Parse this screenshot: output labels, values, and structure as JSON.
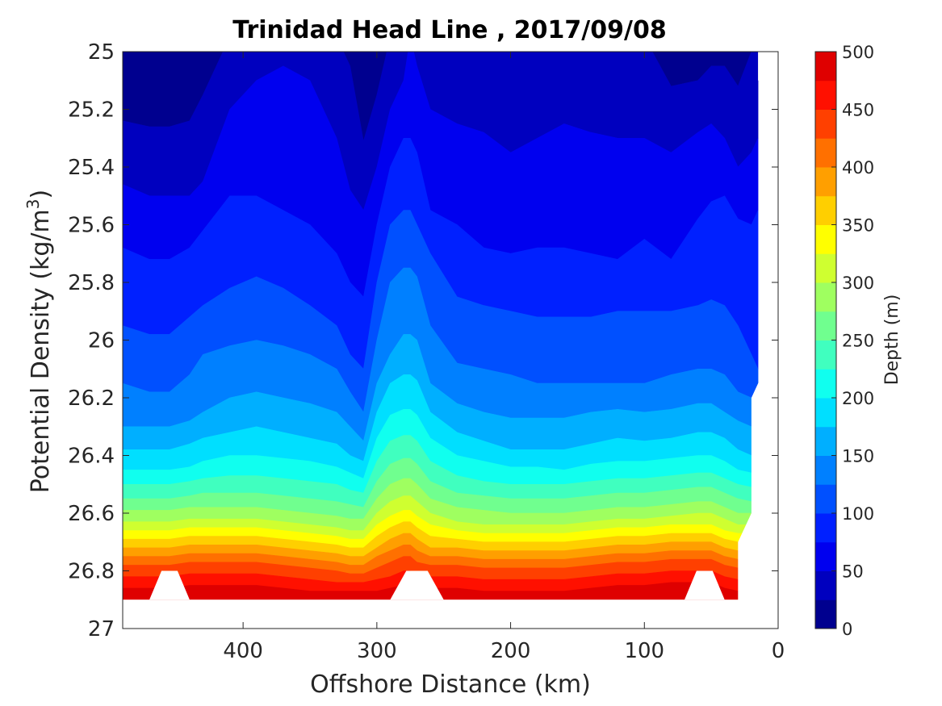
{
  "chart_data": {
    "type": "filled-contour",
    "title": "Trinidad Head Line , 2017/09/08",
    "xlabel": "Offshore Distance (km)",
    "ylabel_main": "Potential Density (kg/m",
    "ylabel_sup": "3",
    "ylabel_tail": ")",
    "xlim": [
      490,
      0
    ],
    "x_reversed": true,
    "ylim": [
      25,
      27
    ],
    "y_reversed": true,
    "x_ticks": [
      400,
      300,
      200,
      100,
      0
    ],
    "y_ticks": [
      25,
      25.2,
      25.4,
      25.6,
      25.8,
      26,
      26.2,
      26.4,
      26.6,
      26.8,
      27
    ],
    "y_tick_labels": [
      "25",
      "25.2",
      "25.4",
      "25.6",
      "25.8",
      "26",
      "26.2",
      "26.4",
      "26.6",
      "26.8",
      "27"
    ],
    "colorbar": {
      "label": "Depth (m)",
      "range": [
        0,
        500
      ],
      "ticks": [
        0,
        50,
        100,
        150,
        200,
        250,
        300,
        350,
        400,
        450,
        500
      ],
      "colormap": "jet",
      "levels": [
        0,
        25,
        50,
        75,
        100,
        125,
        150,
        175,
        200,
        225,
        250,
        275,
        300,
        325,
        350,
        375,
        400,
        425,
        450,
        475,
        500
      ],
      "colors": [
        "#00008f",
        "#0000bf",
        "#0000ef",
        "#0020ff",
        "#0050ff",
        "#0080ff",
        "#00afff",
        "#00dfff",
        "#10ffef",
        "#40ffbf",
        "#70ff8f",
        "#9fff60",
        "#cfff30",
        "#ffff00",
        "#ffcf00",
        "#ff9f00",
        "#ff7000",
        "#ff4000",
        "#ff1000",
        "#df0000"
      ]
    },
    "x_samples": [
      490,
      470,
      455,
      440,
      430,
      410,
      390,
      370,
      350,
      330,
      320,
      310,
      300,
      290,
      280,
      275,
      270,
      260,
      240,
      220,
      200,
      180,
      160,
      140,
      120,
      100,
      80,
      60,
      50,
      40,
      30,
      20,
      15
    ],
    "isopycnal_depth_levels": [
      {
        "depth": 25,
        "density": [
          25.24,
          25.26,
          25.26,
          25.24,
          25.15,
          24.95,
          24.95,
          24.95,
          24.95,
          24.95,
          25.05,
          25.31,
          25.15,
          24.95,
          24.95,
          24.95,
          24.95,
          24.95,
          24.95,
          24.95,
          24.95,
          24.95,
          24.95,
          24.95,
          24.95,
          24.95,
          25.12,
          25.1,
          25.05,
          25.05,
          25.12,
          25.0,
          25.0
        ]
      },
      {
        "depth": 50,
        "density": [
          25.46,
          25.5,
          25.5,
          25.5,
          25.45,
          25.2,
          25.1,
          25.05,
          25.1,
          25.3,
          25.48,
          25.55,
          25.4,
          25.2,
          25.1,
          24.95,
          25.05,
          25.2,
          25.25,
          25.28,
          25.35,
          25.3,
          25.25,
          25.28,
          25.3,
          25.3,
          25.35,
          25.28,
          25.25,
          25.3,
          25.4,
          25.35,
          25.3
        ]
      },
      {
        "depth": 75,
        "density": [
          25.68,
          25.72,
          25.72,
          25.68,
          25.62,
          25.5,
          25.5,
          25.55,
          25.6,
          25.7,
          25.8,
          25.85,
          25.6,
          25.4,
          25.3,
          25.3,
          25.35,
          25.55,
          25.6,
          25.68,
          25.7,
          25.68,
          25.68,
          25.7,
          25.72,
          25.65,
          25.72,
          25.58,
          25.52,
          25.5,
          25.58,
          25.6,
          25.55
        ]
      },
      {
        "depth": 100,
        "density": [
          25.95,
          25.98,
          25.98,
          25.92,
          25.88,
          25.82,
          25.78,
          25.82,
          25.88,
          25.95,
          26.05,
          26.1,
          25.8,
          25.6,
          25.55,
          25.55,
          25.6,
          25.7,
          25.85,
          25.88,
          25.9,
          25.92,
          25.92,
          25.92,
          25.9,
          25.9,
          25.9,
          25.88,
          25.86,
          25.88,
          25.95,
          26.05,
          26.1
        ]
      },
      {
        "depth": 125,
        "density": [
          26.15,
          26.18,
          26.18,
          26.12,
          26.05,
          26.02,
          26.0,
          26.02,
          26.05,
          26.1,
          26.18,
          26.25,
          26.0,
          25.8,
          25.75,
          25.75,
          25.78,
          25.95,
          26.08,
          26.1,
          26.12,
          26.15,
          26.15,
          26.15,
          26.15,
          26.15,
          26.12,
          26.1,
          26.1,
          26.12,
          26.18,
          26.2,
          26.2
        ]
      },
      {
        "depth": 150,
        "density": [
          26.3,
          26.3,
          26.3,
          26.28,
          26.25,
          26.2,
          26.18,
          26.2,
          26.22,
          26.25,
          26.3,
          26.35,
          26.15,
          26.05,
          25.98,
          25.98,
          26.0,
          26.15,
          26.22,
          26.25,
          26.27,
          26.27,
          26.27,
          26.25,
          26.24,
          26.25,
          26.24,
          26.22,
          26.22,
          26.25,
          26.28,
          26.3,
          26.3
        ]
      },
      {
        "depth": 175,
        "density": [
          26.38,
          26.38,
          26.38,
          26.36,
          26.34,
          26.32,
          26.3,
          26.32,
          26.34,
          26.36,
          26.4,
          26.42,
          26.25,
          26.15,
          26.12,
          26.12,
          26.14,
          26.25,
          26.32,
          26.35,
          26.38,
          26.38,
          26.38,
          26.36,
          26.34,
          26.35,
          26.34,
          26.32,
          26.32,
          26.34,
          26.38,
          26.4,
          26.4
        ]
      },
      {
        "depth": 200,
        "density": [
          26.45,
          26.45,
          26.45,
          26.44,
          26.42,
          26.4,
          26.4,
          26.41,
          26.42,
          26.44,
          26.46,
          26.48,
          26.34,
          26.26,
          26.24,
          26.24,
          26.26,
          26.34,
          26.4,
          26.42,
          26.44,
          26.44,
          26.45,
          26.43,
          26.42,
          26.42,
          26.41,
          26.4,
          26.4,
          26.42,
          26.45,
          26.46,
          26.46
        ]
      },
      {
        "depth": 225,
        "density": [
          26.5,
          26.5,
          26.5,
          26.49,
          26.48,
          26.47,
          26.47,
          26.48,
          26.49,
          26.5,
          26.52,
          26.53,
          26.42,
          26.35,
          26.33,
          26.33,
          26.35,
          26.42,
          26.47,
          26.49,
          26.5,
          26.5,
          26.5,
          26.49,
          26.48,
          26.48,
          26.47,
          26.46,
          26.46,
          26.48,
          26.5,
          26.51,
          26.51
        ]
      },
      {
        "depth": 250,
        "density": [
          26.55,
          26.55,
          26.55,
          26.54,
          26.53,
          26.53,
          26.53,
          26.54,
          26.55,
          26.56,
          26.57,
          26.58,
          26.49,
          26.43,
          26.41,
          26.41,
          26.43,
          26.49,
          26.53,
          26.54,
          26.55,
          26.55,
          26.55,
          26.54,
          26.53,
          26.53,
          26.52,
          26.51,
          26.51,
          26.53,
          26.55,
          26.56,
          26.56
        ]
      },
      {
        "depth": 275,
        "density": [
          26.59,
          26.59,
          26.59,
          26.58,
          26.58,
          26.58,
          26.58,
          26.59,
          26.6,
          26.61,
          26.62,
          26.62,
          26.55,
          26.5,
          26.48,
          26.48,
          26.5,
          26.55,
          26.58,
          26.59,
          26.6,
          26.6,
          26.6,
          26.59,
          26.58,
          26.58,
          26.57,
          26.56,
          26.56,
          26.58,
          26.6,
          26.6,
          26.6
        ]
      },
      {
        "depth": 300,
        "density": [
          26.63,
          26.63,
          26.63,
          26.62,
          26.62,
          26.62,
          26.62,
          26.63,
          26.64,
          26.65,
          26.66,
          26.66,
          26.6,
          26.56,
          26.54,
          26.54,
          26.56,
          26.6,
          26.63,
          26.64,
          26.64,
          26.64,
          26.64,
          26.63,
          26.62,
          26.62,
          26.61,
          26.6,
          26.6,
          26.62,
          26.64,
          26.64,
          26.64
        ]
      },
      {
        "depth": 325,
        "density": [
          26.66,
          26.66,
          26.66,
          26.65,
          26.65,
          26.65,
          26.65,
          26.66,
          26.67,
          26.68,
          26.69,
          26.69,
          26.64,
          26.61,
          26.59,
          26.59,
          26.61,
          26.64,
          26.66,
          26.67,
          26.67,
          26.67,
          26.67,
          26.66,
          26.65,
          26.65,
          26.64,
          26.64,
          26.64,
          26.66,
          26.67,
          26.67,
          26.67
        ]
      },
      {
        "depth": 350,
        "density": [
          26.69,
          26.69,
          26.69,
          26.68,
          26.68,
          26.68,
          26.68,
          26.69,
          26.7,
          26.71,
          26.72,
          26.72,
          26.68,
          26.65,
          26.63,
          26.63,
          26.65,
          26.68,
          26.69,
          26.7,
          26.7,
          26.7,
          26.7,
          26.69,
          26.68,
          26.68,
          26.67,
          26.67,
          26.67,
          26.69,
          26.7,
          26.7,
          26.7
        ]
      },
      {
        "depth": 375,
        "density": [
          26.72,
          26.72,
          26.72,
          26.71,
          26.71,
          26.71,
          26.71,
          26.72,
          26.73,
          26.74,
          26.75,
          26.75,
          26.72,
          26.69,
          26.67,
          26.67,
          26.69,
          26.72,
          26.72,
          26.73,
          26.73,
          26.73,
          26.73,
          26.72,
          26.71,
          26.71,
          26.7,
          26.7,
          26.7,
          26.72,
          26.73,
          26.73,
          26.73
        ]
      },
      {
        "depth": 400,
        "density": [
          26.75,
          26.75,
          26.75,
          26.74,
          26.74,
          26.74,
          26.74,
          26.75,
          26.76,
          26.77,
          26.78,
          26.78,
          26.75,
          26.73,
          26.71,
          26.71,
          26.73,
          26.75,
          26.75,
          26.76,
          26.76,
          26.76,
          26.76,
          26.75,
          26.74,
          26.74,
          26.73,
          26.73,
          26.73,
          26.75,
          26.76,
          26.76,
          26.76
        ]
      },
      {
        "depth": 425,
        "density": [
          26.78,
          26.78,
          26.78,
          26.77,
          26.77,
          26.77,
          26.77,
          26.78,
          26.79,
          26.8,
          26.81,
          26.81,
          26.79,
          26.77,
          26.75,
          26.75,
          26.77,
          26.78,
          26.78,
          26.79,
          26.79,
          26.79,
          26.79,
          26.78,
          26.77,
          26.77,
          26.76,
          26.76,
          26.76,
          26.78,
          26.79,
          26.79,
          26.79
        ]
      },
      {
        "depth": 450,
        "density": [
          26.82,
          26.82,
          26.82,
          26.81,
          26.81,
          26.81,
          26.81,
          26.82,
          26.83,
          26.84,
          26.84,
          26.84,
          26.83,
          26.82,
          26.8,
          26.8,
          26.82,
          26.82,
          26.82,
          26.83,
          26.83,
          26.83,
          26.83,
          26.82,
          26.81,
          26.81,
          26.8,
          26.8,
          26.8,
          26.82,
          26.83,
          26.83,
          26.83
        ]
      },
      {
        "depth": 475,
        "density": [
          26.86,
          26.86,
          26.86,
          26.85,
          26.85,
          26.85,
          26.85,
          26.86,
          26.87,
          26.87,
          26.87,
          26.87,
          26.87,
          26.86,
          26.85,
          26.85,
          26.86,
          26.86,
          26.86,
          26.87,
          26.87,
          26.87,
          26.87,
          26.86,
          26.85,
          26.85,
          26.84,
          26.84,
          26.84,
          26.86,
          26.87,
          26.87,
          26.87
        ]
      }
    ],
    "bottom_boundary_density": 26.9,
    "no_data_notches_km": [
      [
        440,
        470
      ],
      [
        250,
        290
      ],
      [
        40,
        70
      ]
    ],
    "grid": false
  }
}
